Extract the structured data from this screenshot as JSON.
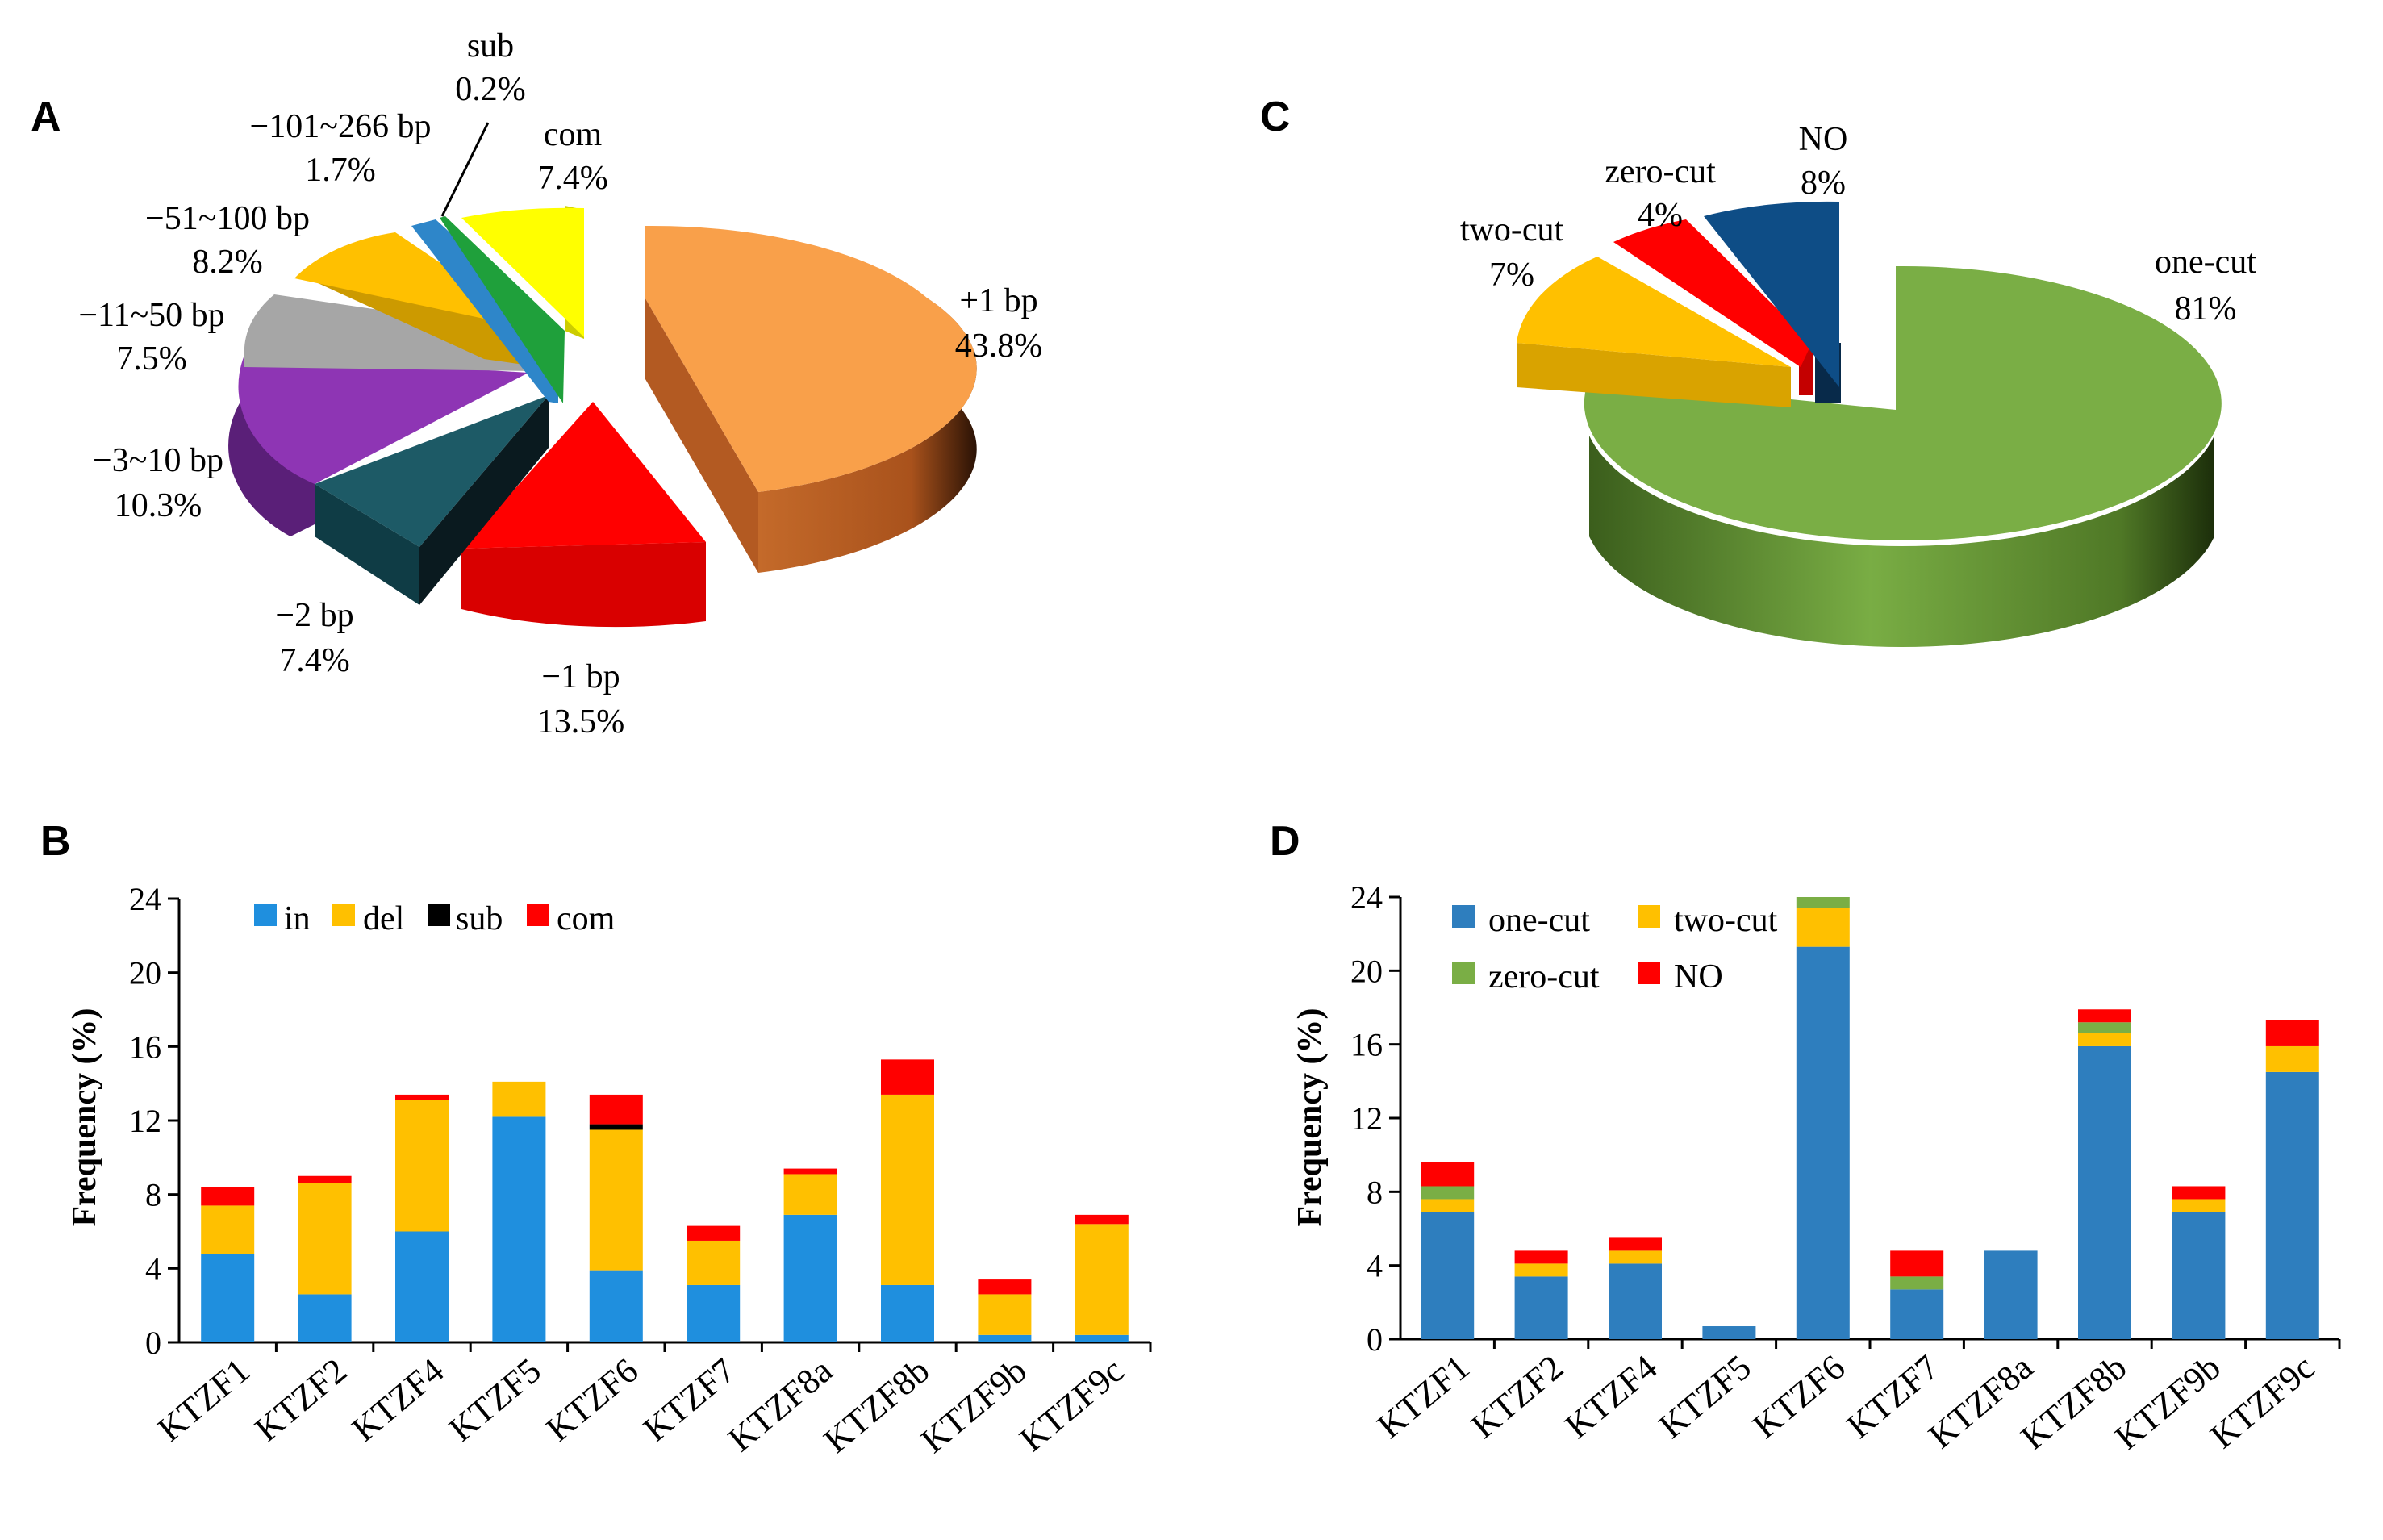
{
  "panels": {
    "a": "A",
    "b": "B",
    "c": "C",
    "d": "D"
  },
  "colors": {
    "plus1": "#F9A04A",
    "minus1": "#FF0000",
    "minus2": "#1D5A66",
    "m3_10": "#8E35B4",
    "m11_50": "#A6A6A6",
    "m51_100": "#FFC000",
    "m101_266": "#2E86C9",
    "sub": "#1FA03B",
    "com": "#FFFF00",
    "in": "#1F8FDE",
    "del": "#FFC000",
    "subbar": "#000000",
    "combar": "#FF0000",
    "onecut": "#2E7EBE",
    "twocut": "#FFC000",
    "zerocut": "#7AAE45",
    "no": "#FF0000",
    "nopie": "#0E4D86",
    "onecutpie": "#7AAE45"
  },
  "chart_data": [
    {
      "type": "pie",
      "panel": "A",
      "slices": [
        {
          "name": "+1 bp",
          "pct_label": "43.8%",
          "value": 43.8
        },
        {
          "name": "−1 bp",
          "pct_label": "13.5%",
          "value": 13.5
        },
        {
          "name": "−2 bp",
          "pct_label": "7.4%",
          "value": 7.4
        },
        {
          "name": "−3~10 bp",
          "pct_label": "10.3%",
          "value": 10.3
        },
        {
          "name": "−11~50 bp",
          "pct_label": "7.5%",
          "value": 7.5
        },
        {
          "name": "−51~100 bp",
          "pct_label": "8.2%",
          "value": 8.2
        },
        {
          "name": "−101~266 bp",
          "pct_label": "1.7%",
          "value": 1.7
        },
        {
          "name": "sub",
          "pct_label": "0.2%",
          "value": 0.2
        },
        {
          "name": "com",
          "pct_label": "7.4%",
          "value": 7.4
        }
      ]
    },
    {
      "type": "bar",
      "panel": "B",
      "stacked": true,
      "ylabel": "Frequency (%)",
      "ylim": [
        0,
        24
      ],
      "yticks": [
        "0",
        "4",
        "8",
        "12",
        "16",
        "20",
        "24"
      ],
      "categories": [
        "KTZF1",
        "KTZF2",
        "KTZF4",
        "KTZF5",
        "KTZF6",
        "KTZF7",
        "KTZF8a",
        "KTZF8b",
        "KTZF9b",
        "KTZF9c"
      ],
      "series": [
        {
          "name": "in",
          "values": [
            4.8,
            2.6,
            6.0,
            12.2,
            3.9,
            3.1,
            6.9,
            3.1,
            0.4,
            0.4
          ]
        },
        {
          "name": "del",
          "values": [
            2.6,
            6.0,
            7.1,
            1.9,
            7.6,
            2.4,
            2.2,
            10.3,
            2.2,
            6.0
          ]
        },
        {
          "name": "sub",
          "values": [
            0,
            0,
            0,
            0,
            0.3,
            0,
            0,
            0,
            0,
            0
          ]
        },
        {
          "name": "com",
          "values": [
            1.0,
            0.4,
            0.3,
            0,
            1.6,
            0.8,
            0.3,
            1.9,
            0.8,
            0.5
          ]
        }
      ]
    },
    {
      "type": "pie",
      "panel": "C",
      "slices": [
        {
          "name": "one-cut",
          "pct_label": "81%",
          "value": 81
        },
        {
          "name": "two-cut",
          "pct_label": "7%",
          "value": 7
        },
        {
          "name": "zero-cut",
          "pct_label": "4%",
          "value": 4
        },
        {
          "name": "NO",
          "pct_label": "8%",
          "value": 8
        }
      ]
    },
    {
      "type": "bar",
      "panel": "D",
      "stacked": true,
      "ylabel": "Frequency (%)",
      "ylim": [
        0,
        24
      ],
      "yticks": [
        "0",
        "4",
        "8",
        "12",
        "16",
        "20",
        "24"
      ],
      "categories": [
        "KTZF1",
        "KTZF2",
        "KTZF4",
        "KTZF5",
        "KTZF6",
        "KTZF7",
        "KTZF8a",
        "KTZF8b",
        "KTZF9b",
        "KTZF9c"
      ],
      "series": [
        {
          "name": "one-cut",
          "values": [
            6.9,
            3.4,
            4.1,
            0.7,
            21.3,
            2.7,
            4.8,
            15.9,
            6.9,
            14.5
          ]
        },
        {
          "name": "two-cut",
          "values": [
            0.7,
            0.7,
            0.7,
            0,
            2.1,
            0,
            0,
            0.7,
            0.7,
            1.4
          ]
        },
        {
          "name": "zero-cut",
          "values": [
            0.7,
            0,
            0,
            0,
            0.6,
            0.7,
            0,
            0.6,
            0,
            0
          ]
        },
        {
          "name": "NO",
          "values": [
            1.3,
            0.7,
            0.7,
            0,
            0,
            1.4,
            0,
            0.7,
            0.7,
            1.4
          ]
        }
      ]
    }
  ]
}
